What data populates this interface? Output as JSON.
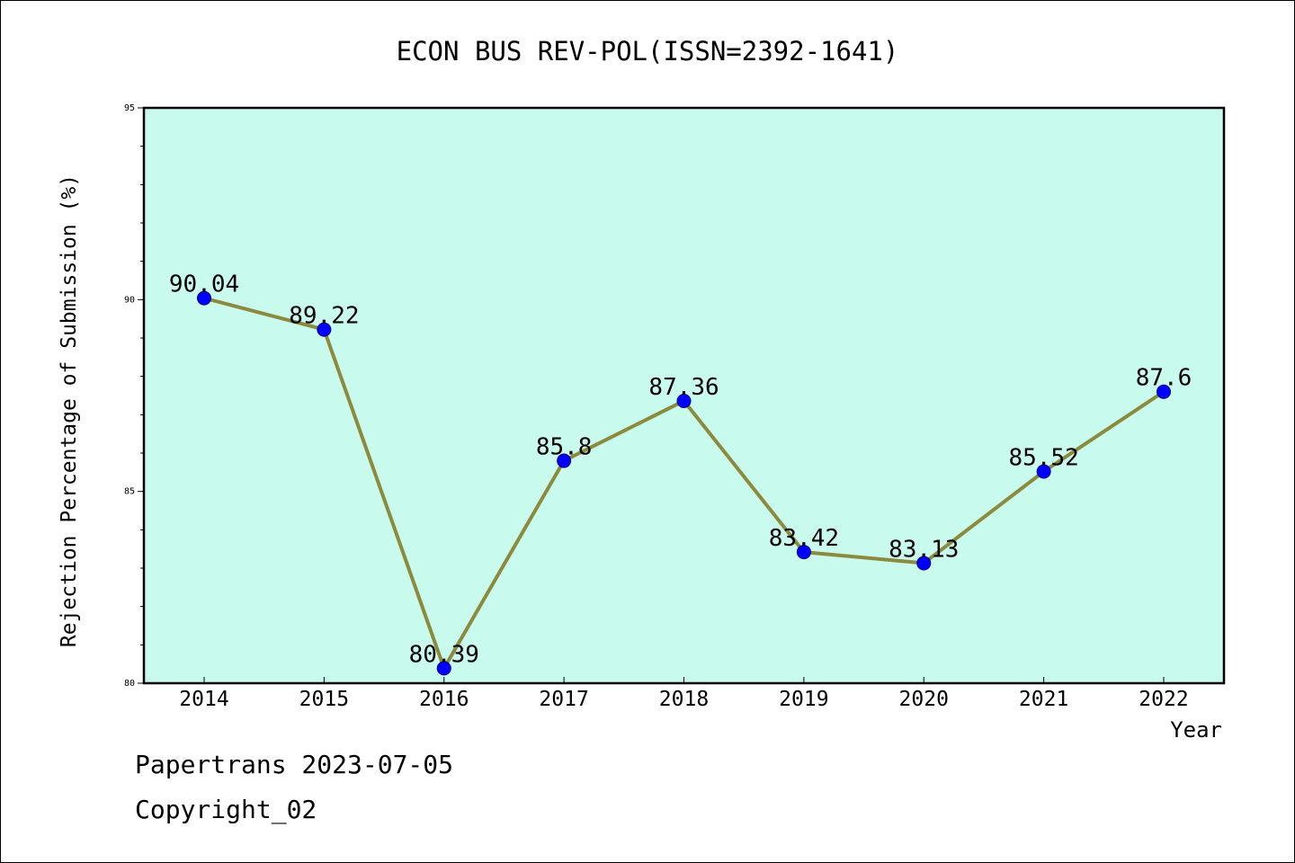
{
  "colors": {
    "plot_background": "#c8faee",
    "line": "#8c8a3c",
    "marker": "#0000ff",
    "marker_edge": "#00008b",
    "axis": "#000000",
    "text": "#000000"
  },
  "chart_data": {
    "type": "line",
    "title": "ECON BUS REV-POL(ISSN=2392-1641)",
    "xlabel": "Year",
    "ylabel": "Rejection Percentage of Submission (%)",
    "categories": [
      "2014",
      "2015",
      "2016",
      "2017",
      "2018",
      "2019",
      "2020",
      "2021",
      "2022"
    ],
    "values": [
      90.04,
      89.22,
      80.39,
      85.8,
      87.36,
      83.42,
      83.13,
      85.52,
      87.6
    ],
    "data_labels": [
      "90.04",
      "89.22",
      "80.39",
      "85.8",
      "87.36",
      "83.42",
      "83.13",
      "85.52",
      "87.6"
    ],
    "ylim": [
      80,
      95
    ],
    "y_ticks": [
      "80",
      "85",
      "90",
      "95"
    ],
    "y_minor_step": 1,
    "grid": false,
    "legend": "none"
  },
  "footer": {
    "line1": "Papertrans 2023-07-05",
    "line2": "Copyright_02"
  }
}
